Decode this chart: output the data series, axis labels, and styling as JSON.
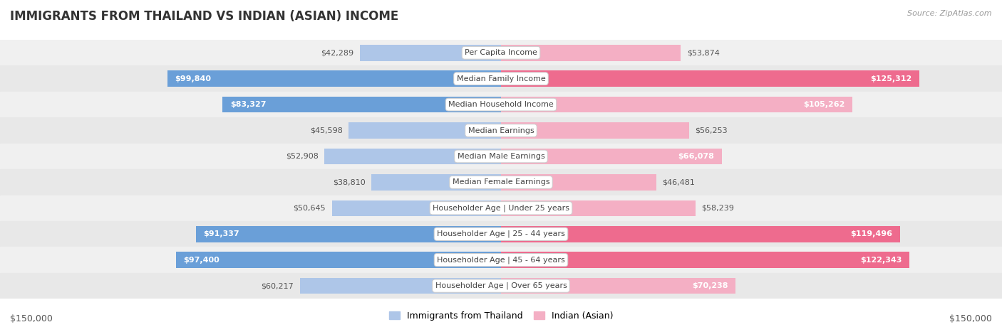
{
  "title": "IMMIGRANTS FROM THAILAND VS INDIAN (ASIAN) INCOME",
  "source": "Source: ZipAtlas.com",
  "categories": [
    "Per Capita Income",
    "Median Family Income",
    "Median Household Income",
    "Median Earnings",
    "Median Male Earnings",
    "Median Female Earnings",
    "Householder Age | Under 25 years",
    "Householder Age | 25 - 44 years",
    "Householder Age | 45 - 64 years",
    "Householder Age | Over 65 years"
  ],
  "thailand_values": [
    42289,
    99840,
    83327,
    45598,
    52908,
    38810,
    50645,
    91337,
    97400,
    60217
  ],
  "indian_values": [
    53874,
    125312,
    105262,
    56253,
    66078,
    46481,
    58239,
    119496,
    122343,
    70238
  ],
  "thailand_labels": [
    "$42,289",
    "$99,840",
    "$83,327",
    "$45,598",
    "$52,908",
    "$38,810",
    "$50,645",
    "$91,337",
    "$97,400",
    "$60,217"
  ],
  "indian_labels": [
    "$53,874",
    "$125,312",
    "$105,262",
    "$56,253",
    "$66,078",
    "$46,481",
    "$58,239",
    "$119,496",
    "$122,343",
    "$70,238"
  ],
  "max_value": 150000,
  "thailand_color_light": "#aec6e8",
  "thailand_color_dark": "#6a9fd8",
  "indian_color_light": "#f4afc4",
  "indian_color_dark": "#ee6b8e",
  "row_bg_odd": "#f0f0f0",
  "row_bg_even": "#e8e8e8",
  "label_inside_color": "white",
  "label_outside_color": "#555555",
  "inside_threshold": 0.42,
  "legend_thailand": "Immigrants from Thailand",
  "legend_indian": "Indian (Asian)",
  "bar_height": 0.62
}
